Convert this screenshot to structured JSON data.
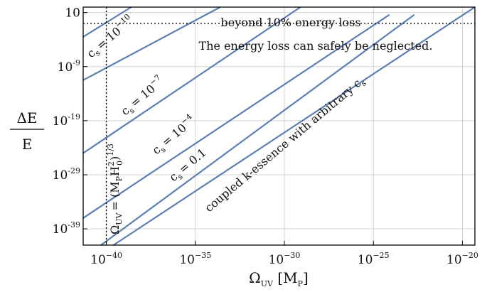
{
  "chart_data": {
    "type": "line",
    "xlabel": "Ω_UV [M_P]",
    "ylabel": "ΔE / E",
    "x_scale": "log",
    "y_scale": "log",
    "xlim_log10": [
      -41.3,
      -19.3
    ],
    "ylim_log10": [
      -42,
      2
    ],
    "x_ticks": [
      {
        "base": "10",
        "exp": "−40",
        "log": -40
      },
      {
        "base": "10",
        "exp": "−35",
        "log": -35
      },
      {
        "base": "10",
        "exp": "−30",
        "log": -30
      },
      {
        "base": "10",
        "exp": "−25",
        "log": -25
      },
      {
        "base": "10",
        "exp": "−20",
        "log": -20
      }
    ],
    "y_ticks": [
      {
        "base": "10",
        "exp": "",
        "log": 1
      },
      {
        "base": "10",
        "exp": "-9",
        "log": -9
      },
      {
        "base": "10",
        "exp": "-19",
        "log": -19
      },
      {
        "base": "10",
        "exp": "-29",
        "log": -29
      },
      {
        "base": "10",
        "exp": "-39",
        "log": -39
      }
    ],
    "grid": true,
    "series": [
      {
        "x_log": [
          -41.3,
          -38.6
        ],
        "y_log": [
          -3.5,
          2.0
        ]
      },
      {
        "x_log": [
          -41.3,
          -33.6
        ],
        "y_log": [
          -11.5,
          2.0
        ]
      },
      {
        "x_log": [
          -41.3,
          -29.1
        ],
        "y_log": [
          -25.0,
          2.0
        ]
      },
      {
        "x_log": [
          -41.3,
          -24.1
        ],
        "y_log": [
          -37.0,
          0.6
        ]
      },
      {
        "x_log": [
          -40.3,
          -22.7
        ],
        "y_log": [
          -42.0,
          0.6
        ]
      },
      {
        "x_log": [
          -39.6,
          -19.3
        ],
        "y_log": [
          -42.0,
          2.0
        ]
      }
    ],
    "reference_lines": {
      "horizontal_log": -1,
      "vertical_log": -40
    },
    "annotations": {
      "beyond": "beyond 10% energy loss",
      "neglect": "The energy loss can safely be neglected.",
      "cs_m10_base": "c",
      "cs_m10_sub": "s",
      "cs_m10_eq": "= 10",
      "cs_m10_exp": "−10",
      "cs_m7_base": "c",
      "cs_m7_sub": "s",
      "cs_m7_eq": "= 10",
      "cs_m7_exp": "−7",
      "cs_m4_base": "c",
      "cs_m4_sub": "s",
      "cs_m4_eq": "= 10",
      "cs_m4_exp": "−4",
      "cs_01_base": "c",
      "cs_01_sub": "s",
      "cs_01_eq": "= 0.1",
      "coupled": "coupled k-essence with arbitrary c",
      "coupled_sub": "s",
      "vline_omega": "Ω",
      "vline_sub": "UV",
      "vline_eq": "= (M",
      "vline_p": "P",
      "vline_h": "H",
      "vline_h_sup": "2",
      "vline_h_sub": "0",
      "vline_close": ")",
      "vline_exp": "1/3"
    },
    "axis_label_parts": {
      "x_omega": "Ω",
      "x_sub": "UV",
      "x_unit_open": " [M",
      "x_unit_sub": "P",
      "x_unit_close": "]",
      "y_num": "ΔE",
      "y_den": "E"
    },
    "colors": {
      "series": "#5b7fb3",
      "grid": "#d3d3d3",
      "frame": "#000000",
      "ref": "#000000"
    }
  }
}
